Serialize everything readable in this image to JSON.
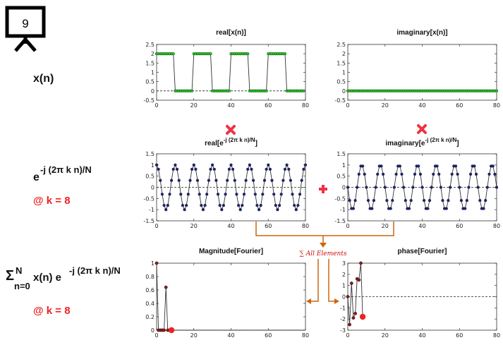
{
  "slide_number": "9",
  "labels": {
    "xn": "x(n)",
    "exp_base": "e",
    "exp_power": "-j (2π k n)/N",
    "at_k1": "@ k = 8",
    "sum_sigma": "Σ",
    "sum_upper": "N",
    "sum_lower": "n=0",
    "sum_body": "x(n) e",
    "sum_power": "-j (2π k n)/N",
    "at_k2": "@ k = 8",
    "all_elements": "∑ All Elements"
  },
  "colors": {
    "green_marker": "#22cc22",
    "blue_marker": "#1a237e",
    "dark_red_marker": "#8b1a1a",
    "highlight_red": "#ee2222",
    "arrow_orange": "#cc6611",
    "operator_red": "#ee3344"
  },
  "chart_data": [
    {
      "id": "real-x",
      "type": "line",
      "title": "real[x(n)]",
      "xlim": [
        0,
        80
      ],
      "ylim": [
        -0.5,
        2.5
      ],
      "xticks": [
        "0",
        "20",
        "40",
        "60",
        "80"
      ],
      "yticks": [
        "-0.5",
        "0",
        "0.5",
        "1",
        "1.5",
        "2",
        "2.5"
      ],
      "marker_color": "#22cc22",
      "pattern": {
        "period": 20,
        "high_samples": 10,
        "high": 2,
        "low": 0,
        "n_samples": 80
      }
    },
    {
      "id": "imag-x",
      "type": "line",
      "title": "imaginary[x(n)]",
      "xlim": [
        0,
        80
      ],
      "ylim": [
        -0.5,
        2.5
      ],
      "xticks": [
        "0",
        "20",
        "40",
        "60",
        "80"
      ],
      "yticks": [
        "-0.5",
        "0",
        "0.5",
        "1",
        "1.5",
        "2",
        "2.5"
      ],
      "marker_color": "#22cc22",
      "constant": 0
    },
    {
      "id": "real-exp",
      "type": "line",
      "title_main": "real[e",
      "title_sup": "-j (2π k n)/N",
      "title_end": "]",
      "xlim": [
        0,
        80
      ],
      "ylim": [
        -1.5,
        1.5
      ],
      "xticks": [
        "0",
        "20",
        "40",
        "60",
        "80"
      ],
      "yticks": [
        "-1.5",
        "-1",
        "-0.5",
        "0",
        "0.5",
        "1",
        "1.5"
      ],
      "marker_color": "#1a237e",
      "function": "cos",
      "k": 8,
      "N": 80
    },
    {
      "id": "imag-exp",
      "type": "line",
      "title_main": "imaginary[e",
      "title_sup": "-j (2π k n)/N",
      "title_end": "]",
      "xlim": [
        0,
        80
      ],
      "ylim": [
        -1.5,
        1.5
      ],
      "xticks": [
        "0",
        "20",
        "40",
        "60",
        "80"
      ],
      "yticks": [
        "-1.5",
        "-1",
        "-0.5",
        "0",
        "0.5",
        "1",
        "1.5"
      ],
      "marker_color": "#1a237e",
      "function": "-sin",
      "k": 8,
      "N": 80
    },
    {
      "id": "magnitude",
      "type": "line",
      "title": "Magnitude[Fourier]",
      "xlim": [
        0,
        80
      ],
      "ylim": [
        0,
        1
      ],
      "xticks": [
        "0",
        "20",
        "40",
        "60",
        "80"
      ],
      "yticks": [
        "0",
        "0.2",
        "0.4",
        "0.6",
        "0.8",
        "1"
      ],
      "marker_color": "#8b1a1a",
      "x": [
        0,
        1,
        2,
        3,
        4,
        5,
        6,
        7,
        8
      ],
      "y": [
        1.0,
        0.0,
        0.0,
        0.0,
        0.0,
        0.64,
        0.0,
        0.0,
        0.0
      ],
      "tail_to": 80,
      "highlight": {
        "x": 8,
        "y": 0.0
      }
    },
    {
      "id": "phase",
      "type": "line",
      "title": "phase[Fourier]",
      "xlim": [
        0,
        80
      ],
      "ylim": [
        -3,
        3
      ],
      "xticks": [
        "0",
        "20",
        "40",
        "60",
        "80"
      ],
      "yticks": [
        "-3",
        "-2",
        "-1",
        "0",
        "1",
        "2",
        "3"
      ],
      "marker_color": "#8b1a1a",
      "x": [
        0,
        1,
        2,
        3,
        4,
        5,
        6,
        7,
        8
      ],
      "y": [
        0.0,
        -2.5,
        1.2,
        -1.9,
        -1.5,
        1.6,
        1.5,
        3.0,
        -1.8
      ],
      "highlight": {
        "x": 8,
        "y": -1.8
      }
    }
  ]
}
